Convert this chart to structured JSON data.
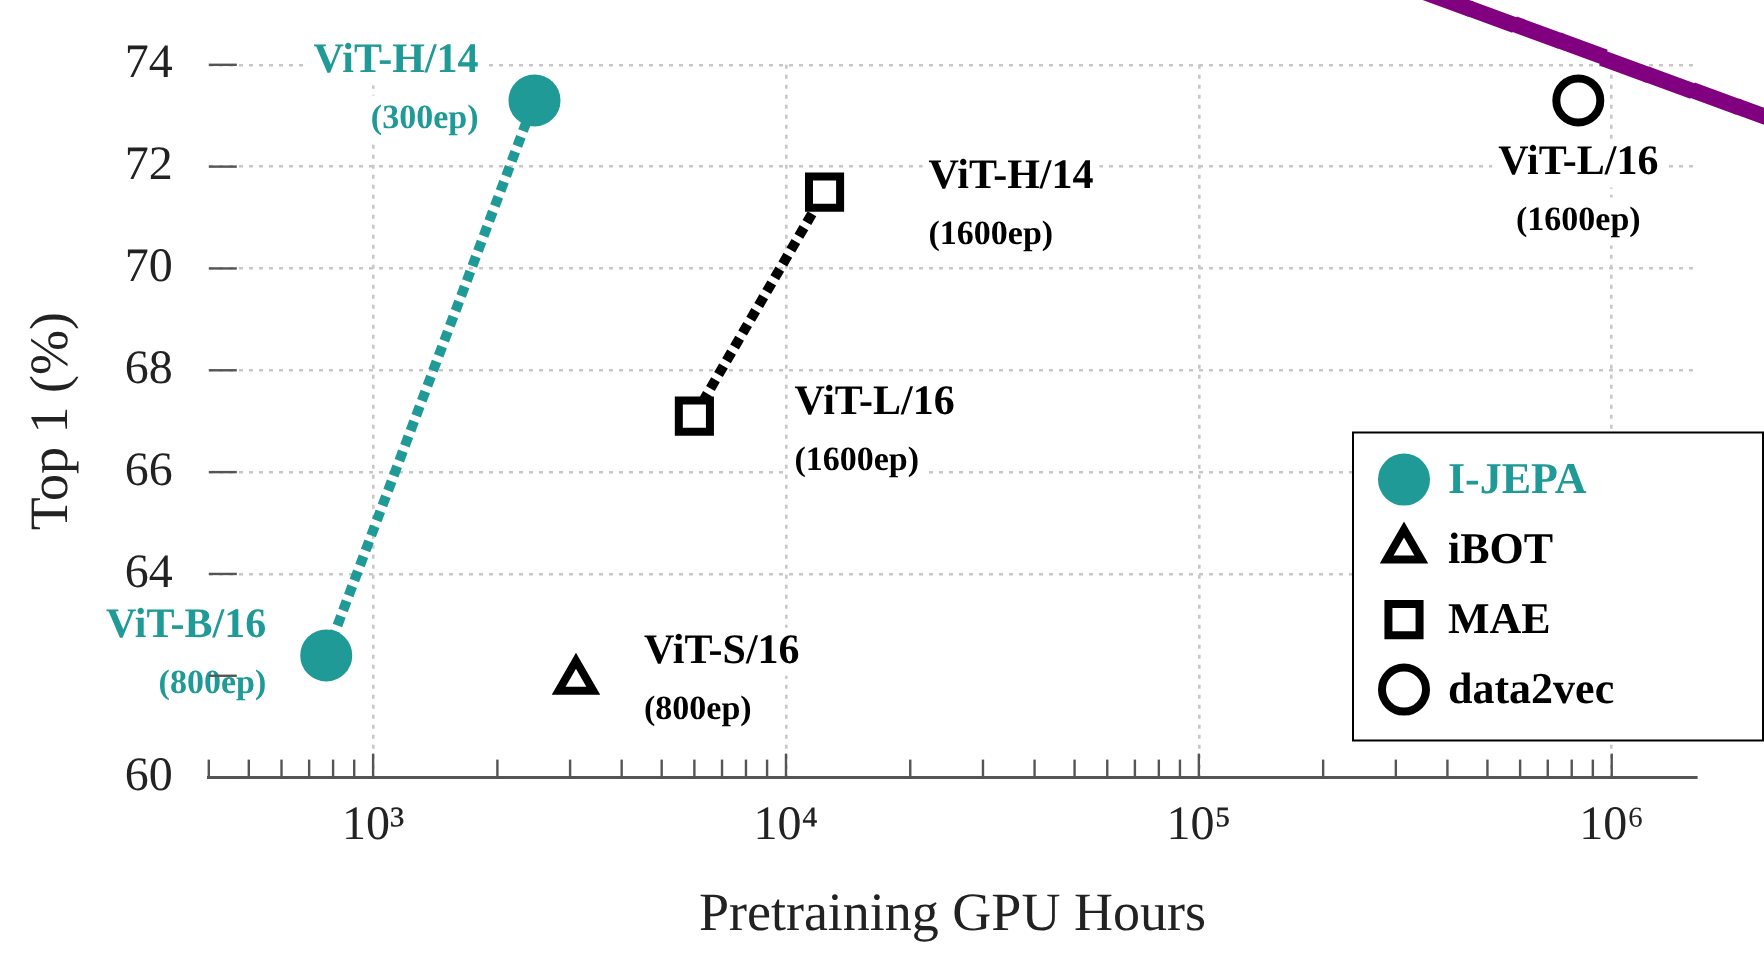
{
  "chart_data": {
    "type": "scatter",
    "xlabel": "Pretraining GPU Hours",
    "ylabel": "Top 1 (%)",
    "log": "x",
    "xlim": [
      400,
      1600000
    ],
    "ylim": [
      60,
      74
    ],
    "xticks": [
      {
        "value": 400,
        "label": null
      },
      {
        "value": 500,
        "label": null
      },
      {
        "value": 600,
        "label": null
      },
      {
        "value": 700,
        "label": null
      },
      {
        "value": 800,
        "label": null
      },
      {
        "value": 900,
        "label": null
      },
      {
        "value": 1000,
        "label": "10³"
      },
      {
        "value": 2000,
        "label": null
      },
      {
        "value": 3000,
        "label": null
      },
      {
        "value": 4000,
        "label": null
      },
      {
        "value": 5000,
        "label": null
      },
      {
        "value": 6000,
        "label": null
      },
      {
        "value": 7000,
        "label": null
      },
      {
        "value": 8000,
        "label": null
      },
      {
        "value": 9000,
        "label": null
      },
      {
        "value": 10000,
        "label": "10⁴"
      },
      {
        "value": 20000,
        "label": null
      },
      {
        "value": 30000,
        "label": null
      },
      {
        "value": 40000,
        "label": null
      },
      {
        "value": 50000,
        "label": null
      },
      {
        "value": 60000,
        "label": null
      },
      {
        "value": 70000,
        "label": null
      },
      {
        "value": 80000,
        "label": null
      },
      {
        "value": 90000,
        "label": null
      },
      {
        "value": 100000,
        "label": "10⁵"
      },
      {
        "value": 200000,
        "label": null
      },
      {
        "value": 300000,
        "label": null
      },
      {
        "value": 400000,
        "label": null
      },
      {
        "value": 500000,
        "label": null
      },
      {
        "value": 600000,
        "label": null
      },
      {
        "value": 700000,
        "label": null
      },
      {
        "value": 800000,
        "label": null
      },
      {
        "value": 900000,
        "label": null
      },
      {
        "value": 1000000,
        "label": "10⁶"
      }
    ],
    "yticks": [
      60,
      {
        "value": 62,
        "label": null
      },
      64,
      66,
      68,
      70,
      72,
      74
    ],
    "grid": true,
    "legend": "bottom right",
    "series": [
      {
        "name": "I-JEPA",
        "type": "line",
        "color": "#1f9a96",
        "marker": "circle",
        "line_style": "dotted",
        "x": [
          770,
          2460
        ],
        "values": [
          62.4,
          73.3
        ]
      },
      {
        "name": "iBOT",
        "type": "scatter",
        "color": "#000000",
        "marker": "triangle",
        "x": [
          3100
        ],
        "values": [
          61.9
        ]
      },
      {
        "name": "MAE",
        "type": "line",
        "color": "#000000",
        "marker": "square",
        "line_style": "dotted",
        "x": [
          6000,
          12400
        ],
        "values": [
          67.1,
          71.5
        ]
      },
      {
        "name": "data2vec",
        "type": "scatter",
        "color": "#000000",
        "marker": "circle",
        "x": [
          830000
        ],
        "values": [
          73.3
        ]
      }
    ],
    "annotations": [
      {
        "text": "ViT-B/16\n(800ep)",
        "x": 770,
        "y": 62.4
      },
      {
        "text": "ViT-H/14\n(300ep)",
        "x": 2460,
        "y": 73.3
      },
      {
        "text": "ViT-S/16\n(800ep)",
        "x": 3100,
        "y": 61.9
      },
      {
        "text": "ViT-L/16\n(1600ep)",
        "x": 6000,
        "y": 67.1
      },
      {
        "text": "ViT-H/14\n(1600ep)",
        "x": 12400,
        "y": 71.5
      },
      {
        "text": "ViT-L/16\n(1600ep)",
        "x": 830000,
        "y": 73.3
      }
    ]
  }
}
